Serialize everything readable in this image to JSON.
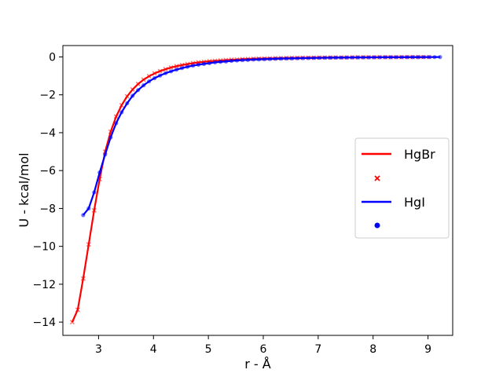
{
  "chart_data": {
    "type": "line",
    "title": "",
    "xlabel": "r - Å",
    "ylabel": "U - kcal/mol",
    "xlim": [
      2.35,
      9.45
    ],
    "ylim": [
      -14.7,
      0.6
    ],
    "xticks": [
      3,
      4,
      5,
      6,
      7,
      8,
      9
    ],
    "yticks": [
      0,
      -2,
      -4,
      -6,
      -8,
      -10,
      -12,
      -14
    ],
    "xtick_labels": [
      "3",
      "4",
      "5",
      "6",
      "7",
      "8",
      "9"
    ],
    "ytick_labels": [
      "0",
      "−2",
      "−4",
      "−6",
      "−8",
      "−10",
      "−12",
      "−14"
    ],
    "grid": false,
    "legend_position": "center-right",
    "series": [
      {
        "name": "HgBr",
        "color": "#ff0000",
        "marker": "x",
        "x": [
          2.52,
          2.62,
          2.72,
          2.82,
          2.92,
          3.02,
          3.12,
          3.22,
          3.32,
          3.42,
          3.52,
          3.62,
          3.72,
          3.82,
          3.92,
          4.02,
          4.12,
          4.22,
          4.32,
          4.42,
          4.52,
          4.62,
          4.72,
          4.82,
          4.92,
          5.02,
          5.12,
          5.22,
          5.32,
          5.42,
          5.52,
          5.62,
          5.72,
          5.82,
          5.92,
          6.02,
          6.12,
          6.22,
          6.32,
          6.42,
          6.52,
          6.62,
          6.72,
          6.82,
          6.92,
          7.02,
          7.12,
          7.22,
          7.32,
          7.42,
          7.52,
          7.62,
          7.72,
          7.82,
          7.92,
          8.02,
          8.12,
          8.22,
          8.32,
          8.42,
          8.52,
          8.62,
          8.72,
          8.82,
          8.92,
          9.02
        ],
        "y": [
          -14.0,
          -13.35,
          -11.7,
          -9.9,
          -8.1,
          -6.45,
          -5.0,
          -3.95,
          -3.15,
          -2.55,
          -2.08,
          -1.72,
          -1.43,
          -1.2,
          -1.02,
          -0.87,
          -0.75,
          -0.65,
          -0.56,
          -0.49,
          -0.43,
          -0.38,
          -0.33,
          -0.29,
          -0.26,
          -0.23,
          -0.21,
          -0.19,
          -0.17,
          -0.15,
          -0.14,
          -0.12,
          -0.11,
          -0.1,
          -0.09,
          -0.085,
          -0.078,
          -0.071,
          -0.065,
          -0.059,
          -0.054,
          -0.05,
          -0.046,
          -0.042,
          -0.039,
          -0.036,
          -0.033,
          -0.03,
          -0.028,
          -0.026,
          -0.024,
          -0.022,
          -0.02,
          -0.018,
          -0.017,
          -0.016,
          -0.015,
          -0.014,
          -0.013,
          -0.012,
          -0.011,
          -0.01,
          -0.009,
          -0.008,
          -0.007,
          -0.006
        ]
      },
      {
        "name": "HgI",
        "color": "#0000ff",
        "marker": "o",
        "x": [
          2.72,
          2.82,
          2.92,
          3.02,
          3.12,
          3.22,
          3.32,
          3.42,
          3.52,
          3.62,
          3.72,
          3.82,
          3.92,
          4.02,
          4.12,
          4.22,
          4.32,
          4.42,
          4.52,
          4.62,
          4.72,
          4.82,
          4.92,
          5.02,
          5.12,
          5.22,
          5.32,
          5.42,
          5.52,
          5.62,
          5.72,
          5.82,
          5.92,
          6.02,
          6.12,
          6.22,
          6.32,
          6.42,
          6.52,
          6.62,
          6.72,
          6.82,
          6.92,
          7.02,
          7.12,
          7.22,
          7.32,
          7.42,
          7.52,
          7.62,
          7.72,
          7.82,
          7.92,
          8.02,
          8.12,
          8.22,
          8.32,
          8.42,
          8.52,
          8.62,
          8.72,
          8.82,
          8.92,
          9.02,
          9.12,
          9.22
        ],
        "y": [
          -8.35,
          -8.0,
          -7.15,
          -6.1,
          -5.15,
          -4.25,
          -3.5,
          -2.92,
          -2.45,
          -2.05,
          -1.75,
          -1.5,
          -1.29,
          -1.12,
          -0.98,
          -0.86,
          -0.76,
          -0.67,
          -0.59,
          -0.52,
          -0.46,
          -0.41,
          -0.37,
          -0.33,
          -0.29,
          -0.26,
          -0.24,
          -0.21,
          -0.19,
          -0.17,
          -0.16,
          -0.14,
          -0.13,
          -0.12,
          -0.11,
          -0.1,
          -0.09,
          -0.085,
          -0.078,
          -0.071,
          -0.065,
          -0.06,
          -0.055,
          -0.05,
          -0.046,
          -0.042,
          -0.039,
          -0.036,
          -0.033,
          -0.03,
          -0.028,
          -0.026,
          -0.024,
          -0.022,
          -0.02,
          -0.018,
          -0.016,
          -0.015,
          -0.014,
          -0.013,
          -0.012,
          -0.011,
          -0.01,
          -0.009,
          -0.008,
          -0.007
        ]
      }
    ]
  }
}
